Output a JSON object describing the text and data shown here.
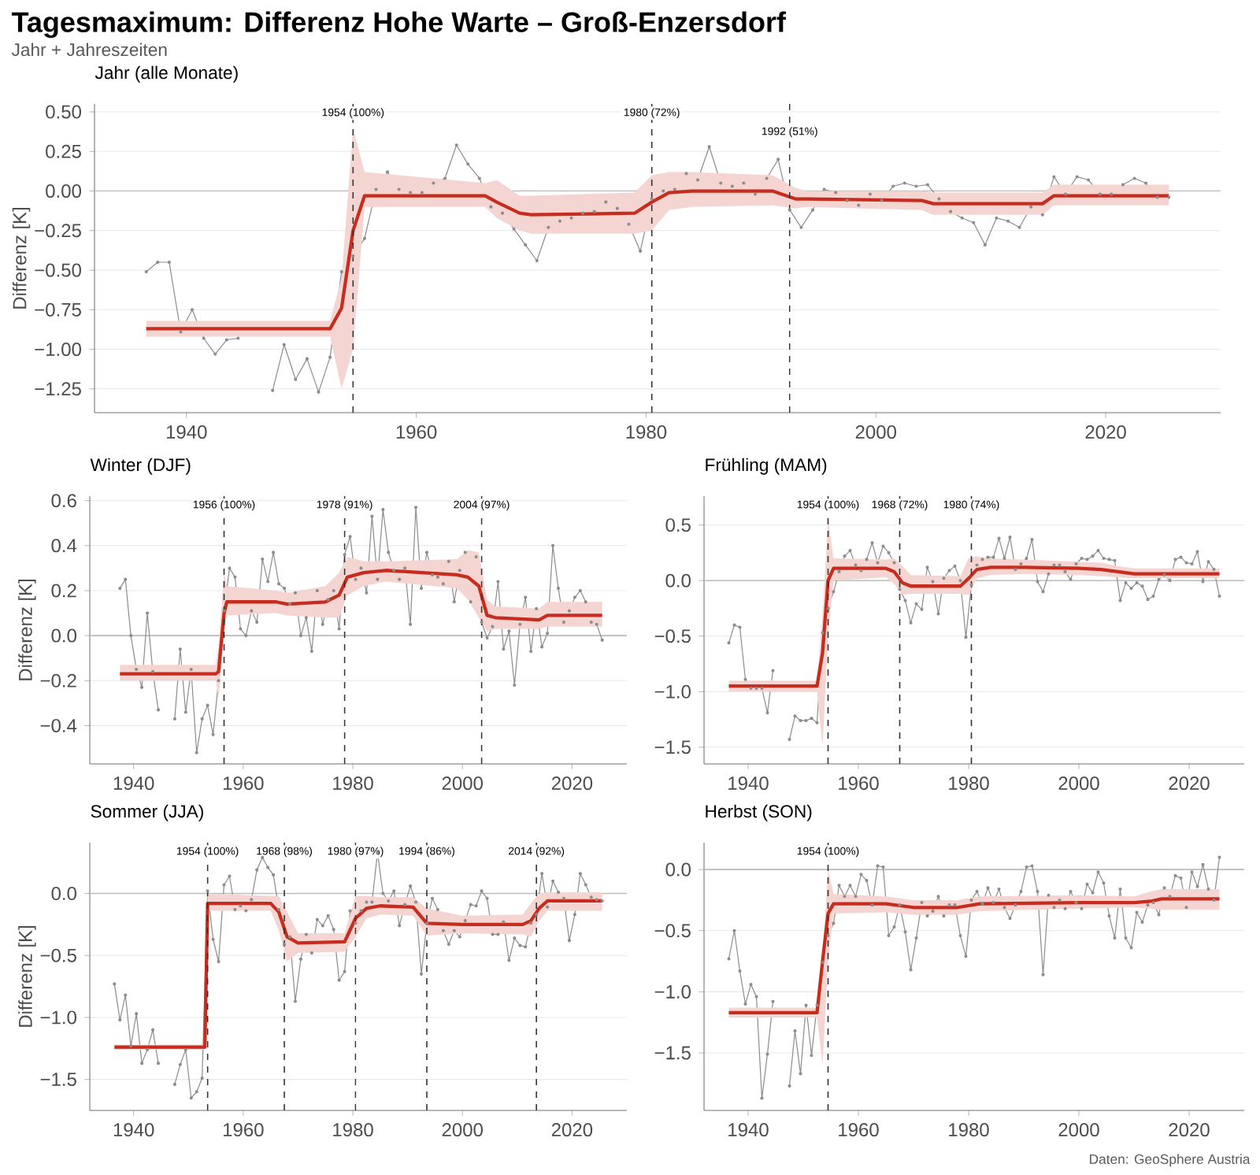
{
  "chart_data": [
    {
      "type": "other",
      "title": "Tagesmaximum: Differenz Hohe Warte – Groß-Enzersdorf",
      "subtitle": "Jahr + Jahreszeiten",
      "annotations": [
        "Daten: GeoSphere Austria"
      ]
    },
    {
      "type": "line",
      "title": "Jahr (alle Monate)",
      "ylabel": "Differenz [K]",
      "xlim": [
        1932,
        2030
      ],
      "ylim": [
        -1.4,
        0.55
      ],
      "xticks": [
        1940,
        1960,
        1980,
        2000,
        2020
      ],
      "yticks": [
        {
          "value": -1.25,
          "label": "−1.25"
        },
        {
          "value": -1.0,
          "label": "−1.00"
        },
        {
          "value": -0.75,
          "label": "−0.75"
        },
        {
          "value": -0.5,
          "label": "−0.50"
        },
        {
          "value": -0.25,
          "label": "−0.25"
        },
        {
          "value": 0,
          "label": "0.00"
        },
        {
          "value": 0.25,
          "label": "0.25"
        },
        {
          "value": 0.5,
          "label": "0.50"
        }
      ],
      "grid": "y",
      "ref_lines": [
        {
          "axis": "y",
          "value": 0,
          "color": "#bdbdbd",
          "line_style": "solid"
        },
        {
          "axis": "x",
          "value": 1954.5,
          "label": "1954 (100%)",
          "color": "#333333",
          "line_style": "dashed"
        },
        {
          "axis": "x",
          "value": 1980.5,
          "label": "1980 (72%)",
          "color": "#333333",
          "line_style": "dashed"
        },
        {
          "axis": "x",
          "value": 1992.5,
          "label": "1992 (51%)",
          "color": "#333333",
          "line_style": "dashed"
        }
      ],
      "series": [
        {
          "color": "#8c8c8c",
          "marker": "circle",
          "x": [
            1936.5,
            1937.5,
            1938.5,
            1939.5,
            1940.5,
            1941.5,
            1942.5,
            1943.5,
            1944.5,
            1945.5,
            1946.5,
            1947.5,
            1948.5,
            1949.5,
            1950.5,
            1951.5,
            1952.5,
            1953.5,
            1954.5,
            1955.5,
            1956.5,
            1957.5,
            1958.5,
            1959.5,
            1960.5,
            1961.5,
            1962.5,
            1963.5,
            1964.5,
            1965.5,
            1966.5,
            1967.5,
            1968.5,
            1969.5,
            1970.5,
            1971.5,
            1972.5,
            1973.5,
            1974.5,
            1975.5,
            1976.5,
            1977.5,
            1978.5,
            1979.5,
            1980.5,
            1981.5,
            1982.5,
            1983.5,
            1984.5,
            1985.5,
            1986.5,
            1987.5,
            1988.5,
            1989.5,
            1990.5,
            1991.5,
            1992.5,
            1993.5,
            1994.5,
            1995.5,
            1996.5,
            1997.5,
            1998.5,
            1999.5,
            2000.5,
            2001.5,
            2002.5,
            2003.5,
            2004.5,
            2005.5,
            2006.5,
            2007.5,
            2008.5,
            2009.5,
            2010.5,
            2011.5,
            2012.5,
            2013.5,
            2014.5,
            2015.5,
            2016.5,
            2017.5,
            2018.5,
            2019.5,
            2020.5,
            2021.5,
            2022.5,
            2023.5,
            2024.5,
            2025.5
          ],
          "values": [
            -0.51,
            -0.45,
            -0.45,
            -0.89,
            -0.75,
            -0.93,
            -1.03,
            -0.94,
            -0.93,
            null,
            null,
            -1.26,
            -0.97,
            -1.19,
            -1.06,
            -1.27,
            -1.05,
            -0.51,
            -0.41,
            -0.3,
            0.01,
            0.12,
            0.01,
            -0.01,
            -0.01,
            0.05,
            0.08,
            0.29,
            0.17,
            0.08,
            -0.1,
            -0.14,
            -0.24,
            -0.34,
            -0.44,
            -0.23,
            -0.19,
            -0.17,
            -0.14,
            -0.13,
            -0.07,
            -0.11,
            -0.21,
            -0.38,
            -0.05,
            0.0,
            0.01,
            0.11,
            0.07,
            0.28,
            0.05,
            0.03,
            0.05,
            -0.02,
            0.08,
            0.2,
            -0.12,
            -0.23,
            -0.12,
            0.01,
            -0.01,
            -0.06,
            -0.09,
            -0.02,
            -0.06,
            0.03,
            0.05,
            0.03,
            0.04,
            -0.05,
            -0.13,
            -0.17,
            -0.2,
            -0.34,
            -0.17,
            -0.19,
            -0.23,
            -0.1,
            -0.15,
            0.09,
            -0.02,
            0.09,
            0.07,
            -0.02,
            -0.02,
            0.04,
            0.08,
            0.05,
            -0.04,
            -0.04
          ]
        },
        {
          "color": "#c62d1f",
          "x": [
            1936.5,
            1952.5,
            1953.5,
            1954.5,
            1955.5,
            1966,
            1967,
            1969,
            1970,
            1979,
            1980.5,
            1982,
            1984,
            1991,
            1993,
            1994,
            2004,
            2005,
            2014.5,
            2015.5,
            2025.5
          ],
          "values": [
            -0.87,
            -0.87,
            -0.74,
            -0.25,
            -0.03,
            -0.03,
            -0.07,
            -0.14,
            -0.15,
            -0.14,
            -0.07,
            -0.01,
            0.0,
            0.0,
            -0.05,
            -0.05,
            -0.06,
            -0.08,
            -0.08,
            -0.03,
            -0.03
          ],
          "lower": [
            -0.92,
            -0.92,
            -1.25,
            -1.0,
            -0.1,
            -0.1,
            -0.17,
            -0.25,
            -0.27,
            -0.27,
            -0.25,
            -0.12,
            -0.1,
            -0.09,
            -0.11,
            -0.1,
            -0.12,
            -0.15,
            -0.15,
            -0.09,
            -0.09
          ],
          "upper": [
            -0.82,
            -0.82,
            -0.55,
            0.4,
            0.12,
            0.05,
            0.07,
            -0.03,
            -0.03,
            -0.01,
            0.1,
            0.12,
            0.12,
            0.1,
            0.02,
            0.0,
            0.0,
            -0.01,
            -0.01,
            0.04,
            0.04
          ]
        }
      ]
    },
    {
      "type": "line",
      "title": "Winter (DJF)",
      "ylabel": "Differenz [K]",
      "xlim": [
        1932,
        2030
      ],
      "ylim": [
        -0.57,
        0.62
      ],
      "xticks": [
        1940,
        1960,
        1980,
        2000,
        2020
      ],
      "yticks": [
        {
          "value": -0.4,
          "label": "−0.4"
        },
        {
          "value": -0.2,
          "label": "−0.2"
        },
        {
          "value": 0,
          "label": "0.0"
        },
        {
          "value": 0.2,
          "label": "0.2"
        },
        {
          "value": 0.4,
          "label": "0.4"
        },
        {
          "value": 0.6,
          "label": "0.6"
        }
      ],
      "grid": "y",
      "ref_lines": [
        {
          "axis": "y",
          "value": 0,
          "color": "#bdbdbd",
          "line_style": "solid"
        },
        {
          "axis": "x",
          "value": 1956.5,
          "label": "1956 (100%)",
          "color": "#333333",
          "line_style": "dashed"
        },
        {
          "axis": "x",
          "value": 1978.5,
          "label": "1978 (91%)",
          "color": "#333333",
          "line_style": "dashed"
        },
        {
          "axis": "x",
          "value": 2003.5,
          "label": "2004 (97%)",
          "color": "#333333",
          "line_style": "dashed"
        }
      ],
      "series": [
        {
          "color": "#8c8c8c",
          "marker": "circle",
          "x": [
            1937.5,
            1938.5,
            1939.5,
            1940.5,
            1941.5,
            1942.5,
            1943.5,
            1944.5,
            1945.5,
            1946.5,
            1947.5,
            1948.5,
            1949.5,
            1950.5,
            1951.5,
            1952.5,
            1953.5,
            1954.5,
            1955.5,
            1956.5,
            1957.5,
            1958.5,
            1959.5,
            1960.5,
            1961.5,
            1962.5,
            1963.5,
            1964.5,
            1965.5,
            1966.5,
            1967.5,
            1968.5,
            1969.5,
            1970.5,
            1971.5,
            1972.5,
            1973.5,
            1974.5,
            1975.5,
            1976.5,
            1977.5,
            1978.5,
            1979.5,
            1980.5,
            1981.5,
            1982.5,
            1983.5,
            1984.5,
            1985.5,
            1986.5,
            1987.5,
            1988.5,
            1989.5,
            1990.5,
            1991.5,
            1992.5,
            1993.5,
            1994.5,
            1995.5,
            1996.5,
            1997.5,
            1998.5,
            1999.5,
            2000.5,
            2001.5,
            2002.5,
            2003.5,
            2004.5,
            2005.5,
            2006.5,
            2007.5,
            2008.5,
            2009.5,
            2010.5,
            2011.5,
            2012.5,
            2013.5,
            2014.5,
            2015.5,
            2016.5,
            2017.5,
            2018.5,
            2019.5,
            2020.5,
            2021.5,
            2022.5,
            2023.5,
            2024.5,
            2025.5
          ],
          "values": [
            0.21,
            0.25,
            0.0,
            -0.15,
            -0.23,
            0.1,
            -0.16,
            -0.33,
            null,
            null,
            -0.37,
            -0.06,
            -0.34,
            -0.15,
            -0.52,
            -0.37,
            -0.31,
            -0.44,
            -0.2,
            0.11,
            0.3,
            0.26,
            0.03,
            0.0,
            0.11,
            0.06,
            0.34,
            0.24,
            0.37,
            0.23,
            0.21,
            0.14,
            0.19,
            0.0,
            0.08,
            -0.07,
            0.2,
            0.05,
            0.16,
            0.2,
            0.03,
            0.36,
            0.44,
            0.25,
            0.3,
            0.19,
            0.53,
            0.25,
            0.56,
            0.37,
            0.29,
            0.25,
            0.3,
            0.05,
            0.57,
            0.21,
            0.37,
            0.27,
            0.26,
            0.23,
            0.33,
            0.15,
            0.29,
            0.37,
            0.15,
            0.35,
            0.06,
            -0.01,
            0.04,
            0.24,
            -0.06,
            0.02,
            -0.22,
            0.05,
            0.17,
            -0.07,
            0.12,
            -0.05,
            0.01,
            0.4,
            0.21,
            0.06,
            0.11,
            0.17,
            0.2,
            0.15,
            0.06,
            0.05,
            -0.02
          ]
        },
        {
          "color": "#c62d1f",
          "x": [
            1937.5,
            1955,
            1955.5,
            1956.5,
            1957,
            1966,
            1968,
            1975,
            1977.5,
            1979,
            1982,
            1986,
            1999,
            2001,
            2003,
            2004.5,
            2006,
            2014,
            2015.5,
            2025.5
          ],
          "values": [
            -0.17,
            -0.17,
            -0.16,
            0.1,
            0.15,
            0.15,
            0.14,
            0.15,
            0.18,
            0.26,
            0.28,
            0.29,
            0.27,
            0.26,
            0.22,
            0.09,
            0.08,
            0.07,
            0.09,
            0.09
          ],
          "lower": [
            -0.2,
            -0.2,
            -0.28,
            0.0,
            0.09,
            0.1,
            0.09,
            0.08,
            0.08,
            0.18,
            0.22,
            0.24,
            0.21,
            0.16,
            0.08,
            0.02,
            0.03,
            0.03,
            0.04,
            0.04
          ],
          "upper": [
            -0.13,
            -0.13,
            -0.05,
            0.28,
            0.22,
            0.2,
            0.19,
            0.22,
            0.28,
            0.35,
            0.33,
            0.33,
            0.34,
            0.38,
            0.37,
            0.16,
            0.13,
            0.12,
            0.15,
            0.15
          ]
        }
      ]
    },
    {
      "type": "line",
      "title": "Frühling (MAM)",
      "xlim": [
        1932,
        2030
      ],
      "ylim": [
        -1.65,
        0.76
      ],
      "xticks": [
        1940,
        1960,
        1980,
        2000,
        2020
      ],
      "yticks": [
        {
          "value": -1.5,
          "label": "−1.5"
        },
        {
          "value": -1.0,
          "label": "−1.0"
        },
        {
          "value": -0.5,
          "label": "−0.5"
        },
        {
          "value": 0,
          "label": "0.0"
        },
        {
          "value": 0.5,
          "label": "0.5"
        }
      ],
      "grid": "y",
      "ref_lines": [
        {
          "axis": "y",
          "value": 0,
          "color": "#bdbdbd",
          "line_style": "solid"
        },
        {
          "axis": "x",
          "value": 1954.5,
          "label": "1954 (100%)",
          "color": "#333333",
          "line_style": "dashed"
        },
        {
          "axis": "x",
          "value": 1967.5,
          "label": "1968 (72%)",
          "color": "#333333",
          "line_style": "dashed"
        },
        {
          "axis": "x",
          "value": 1980.5,
          "label": "1980 (74%)",
          "color": "#333333",
          "line_style": "dashed"
        }
      ],
      "series": [
        {
          "color": "#8c8c8c",
          "marker": "circle",
          "x": [
            1936.5,
            1937.5,
            1938.5,
            1939.5,
            1940.5,
            1941.5,
            1942.5,
            1943.5,
            1944.5,
            1945.5,
            1946.5,
            1947.5,
            1948.5,
            1949.5,
            1950.5,
            1951.5,
            1952.5,
            1953.5,
            1954.5,
            1955.5,
            1956.5,
            1957.5,
            1958.5,
            1959.5,
            1960.5,
            1961.5,
            1962.5,
            1963.5,
            1964.5,
            1965.5,
            1966.5,
            1967.5,
            1968.5,
            1969.5,
            1970.5,
            1971.5,
            1972.5,
            1973.5,
            1974.5,
            1975.5,
            1976.5,
            1977.5,
            1978.5,
            1979.5,
            1980.5,
            1981.5,
            1982.5,
            1983.5,
            1984.5,
            1985.5,
            1986.5,
            1987.5,
            1988.5,
            1989.5,
            1990.5,
            1991.5,
            1992.5,
            1993.5,
            1994.5,
            1995.5,
            1996.5,
            1997.5,
            1998.5,
            1999.5,
            2000.5,
            2001.5,
            2002.5,
            2003.5,
            2004.5,
            2005.5,
            2006.5,
            2007.5,
            2008.5,
            2009.5,
            2010.5,
            2011.5,
            2012.5,
            2013.5,
            2014.5,
            2015.5,
            2016.5,
            2017.5,
            2018.5,
            2019.5,
            2020.5,
            2021.5,
            2022.5,
            2023.5,
            2024.5,
            2025.5
          ],
          "values": [
            -0.56,
            -0.4,
            -0.42,
            -0.89,
            -0.97,
            -0.97,
            -0.97,
            -1.19,
            -0.81,
            null,
            null,
            -1.43,
            -1.22,
            -1.26,
            -1.26,
            -1.24,
            -1.28,
            -0.47,
            -0.25,
            -0.1,
            0.08,
            0.22,
            0.27,
            0.14,
            0.09,
            0.19,
            0.34,
            0.16,
            0.31,
            0.25,
            0.16,
            -0.08,
            -0.18,
            -0.38,
            -0.21,
            -0.26,
            0.12,
            -0.01,
            -0.3,
            0.02,
            0.09,
            0.13,
            0.0,
            -0.51,
            -0.04,
            0.14,
            0.19,
            0.21,
            0.21,
            0.38,
            0.2,
            0.39,
            0.1,
            0.15,
            0.2,
            0.37,
            -0.01,
            -0.1,
            0.06,
            0.14,
            0.14,
            0.08,
            0.01,
            0.15,
            0.2,
            0.19,
            0.22,
            0.27,
            0.2,
            0.19,
            0.18,
            -0.18,
            -0.02,
            -0.07,
            -0.02,
            -0.05,
            -0.17,
            -0.14,
            0.01,
            0.05,
            0.0,
            0.19,
            0.21,
            0.16,
            0.15,
            0.26,
            -0.01,
            0.17,
            0.1,
            -0.14
          ]
        },
        {
          "color": "#c62d1f",
          "x": [
            1936.5,
            1952.5,
            1953.5,
            1954.5,
            1955.5,
            1965,
            1966.5,
            1968,
            1969.5,
            1978.5,
            1980,
            1981.5,
            1984,
            1990,
            2000,
            2004,
            2007,
            2010,
            2025.5
          ],
          "values": [
            -0.95,
            -0.95,
            -0.65,
            0.0,
            0.11,
            0.11,
            0.08,
            -0.02,
            -0.05,
            -0.05,
            0.02,
            0.1,
            0.12,
            0.12,
            0.11,
            0.1,
            0.08,
            0.06,
            0.06
          ],
          "lower": [
            -1.0,
            -1.0,
            -1.5,
            -0.5,
            0.0,
            0.03,
            -0.03,
            -0.13,
            -0.12,
            -0.12,
            -0.13,
            0.02,
            0.05,
            0.06,
            0.05,
            0.04,
            0.03,
            0.02,
            0.02
          ],
          "upper": [
            -0.9,
            -0.9,
            -0.3,
            0.55,
            0.2,
            0.19,
            0.2,
            0.13,
            0.05,
            0.04,
            0.2,
            0.22,
            0.2,
            0.19,
            0.17,
            0.16,
            0.13,
            0.11,
            0.11
          ]
        }
      ]
    },
    {
      "type": "line",
      "title": "Sommer (JJA)",
      "ylabel": "Differenz [K]",
      "xlim": [
        1932,
        2030
      ],
      "ylim": [
        -1.75,
        0.41
      ],
      "xticks": [
        1940,
        1960,
        1980,
        2000,
        2020
      ],
      "yticks": [
        {
          "value": -1.5,
          "label": "−1.5"
        },
        {
          "value": -1.0,
          "label": "−1.0"
        },
        {
          "value": -0.5,
          "label": "−0.5"
        },
        {
          "value": 0,
          "label": "0.0"
        }
      ],
      "grid": "y",
      "ref_lines": [
        {
          "axis": "y",
          "value": 0,
          "color": "#bdbdbd",
          "line_style": "solid"
        },
        {
          "axis": "x",
          "value": 1953.5,
          "label": "1954 (100%)",
          "color": "#333333",
          "line_style": "dashed"
        },
        {
          "axis": "x",
          "value": 1967.5,
          "label": "1968 (98%)",
          "color": "#333333",
          "line_style": "dashed"
        },
        {
          "axis": "x",
          "value": 1980.5,
          "label": "1980 (97%)",
          "color": "#333333",
          "line_style": "dashed"
        },
        {
          "axis": "x",
          "value": 1993.5,
          "label": "1994 (86%)",
          "color": "#333333",
          "line_style": "dashed"
        },
        {
          "axis": "x",
          "value": 2013.5,
          "label": "2014 (92%)",
          "color": "#333333",
          "line_style": "dashed"
        }
      ],
      "series": [
        {
          "color": "#8c8c8c",
          "marker": "circle",
          "x": [
            1936.5,
            1937.5,
            1938.5,
            1939.5,
            1940.5,
            1941.5,
            1942.5,
            1943.5,
            1944.5,
            1945.5,
            1946.5,
            1947.5,
            1948.5,
            1949.5,
            1950.5,
            1951.5,
            1952.5,
            1953.5,
            1954.5,
            1955.5,
            1956.5,
            1957.5,
            1958.5,
            1959.5,
            1960.5,
            1961.5,
            1962.5,
            1963.5,
            1964.5,
            1965.5,
            1966.5,
            1967.5,
            1968.5,
            1969.5,
            1970.5,
            1971.5,
            1972.5,
            1973.5,
            1974.5,
            1975.5,
            1976.5,
            1977.5,
            1978.5,
            1979.5,
            1980.5,
            1981.5,
            1982.5,
            1983.5,
            1984.5,
            1985.5,
            1986.5,
            1987.5,
            1988.5,
            1989.5,
            1990.5,
            1991.5,
            1992.5,
            1993.5,
            1994.5,
            1995.5,
            1996.5,
            1997.5,
            1998.5,
            1999.5,
            2000.5,
            2001.5,
            2002.5,
            2003.5,
            2004.5,
            2005.5,
            2006.5,
            2007.5,
            2008.5,
            2009.5,
            2010.5,
            2011.5,
            2012.5,
            2013.5,
            2014.5,
            2015.5,
            2016.5,
            2017.5,
            2018.5,
            2019.5,
            2020.5,
            2021.5,
            2022.5,
            2023.5,
            2024.5,
            2025.5
          ],
          "values": [
            -0.73,
            -1.02,
            -0.82,
            -1.23,
            -0.97,
            -1.37,
            -1.26,
            -1.1,
            -1.37,
            null,
            null,
            -1.54,
            -1.38,
            -1.26,
            -1.65,
            -1.6,
            -1.49,
            0.02,
            -0.37,
            -0.55,
            0.07,
            0.14,
            -0.13,
            -0.1,
            -0.14,
            -0.05,
            0.19,
            0.29,
            0.21,
            0.15,
            -0.13,
            -0.41,
            -0.35,
            -0.87,
            -0.53,
            -0.33,
            -0.48,
            -0.21,
            -0.26,
            -0.18,
            -0.29,
            -0.7,
            -0.63,
            -0.14,
            -0.24,
            -0.14,
            -0.07,
            -0.07,
            0.33,
            0.0,
            -0.06,
            0.02,
            -0.26,
            -0.09,
            0.06,
            -0.07,
            -0.65,
            -0.24,
            -0.04,
            -0.13,
            -0.3,
            -0.41,
            -0.3,
            -0.35,
            -0.22,
            -0.09,
            -0.1,
            0.02,
            -0.04,
            -0.33,
            -0.33,
            -0.23,
            -0.54,
            -0.36,
            -0.42,
            -0.43,
            -0.24,
            -0.17,
            0.16,
            -0.11,
            0.1,
            0.01,
            -0.04,
            -0.38,
            -0.17,
            0.16,
            0.07,
            -0.03,
            -0.05,
            -0.06
          ]
        },
        {
          "color": "#c62d1f",
          "x": [
            1936.5,
            1953,
            1953.5,
            1965,
            1966.5,
            1968,
            1970,
            1978.5,
            1980.5,
            1982.5,
            1985,
            1991,
            1993.5,
            2000,
            2011,
            2012.5,
            2014,
            2015.5,
            2025.5
          ],
          "values": [
            -1.24,
            -1.24,
            -0.08,
            -0.08,
            -0.15,
            -0.35,
            -0.4,
            -0.39,
            -0.2,
            -0.12,
            -0.1,
            -0.11,
            -0.24,
            -0.25,
            -0.25,
            -0.22,
            -0.12,
            -0.06,
            -0.06
          ],
          "lower": [
            -1.26,
            -1.26,
            -0.14,
            -0.14,
            -0.3,
            -0.55,
            -0.48,
            -0.47,
            -0.35,
            -0.2,
            -0.17,
            -0.18,
            -0.34,
            -0.32,
            -0.33,
            -0.35,
            -0.22,
            -0.14,
            -0.14
          ],
          "upper": [
            -1.22,
            -1.22,
            0.0,
            -0.02,
            -0.02,
            -0.15,
            -0.32,
            -0.32,
            -0.02,
            -0.02,
            -0.03,
            -0.03,
            -0.12,
            -0.18,
            -0.17,
            -0.08,
            0.0,
            0.01,
            0.01
          ]
        }
      ]
    },
    {
      "type": "line",
      "title": "Herbst (SON)",
      "xlim": [
        1932,
        2030
      ],
      "ylim": [
        -1.97,
        0.22
      ],
      "xticks": [
        1940,
        1960,
        1980,
        2000,
        2020
      ],
      "yticks": [
        {
          "value": -1.5,
          "label": "−1.5"
        },
        {
          "value": -1.0,
          "label": "−1.0"
        },
        {
          "value": -0.5,
          "label": "−0.5"
        },
        {
          "value": 0,
          "label": "0.0"
        }
      ],
      "grid": "y",
      "ref_lines": [
        {
          "axis": "y",
          "value": 0,
          "color": "#bdbdbd",
          "line_style": "solid"
        },
        {
          "axis": "x",
          "value": 1954.5,
          "label": "1954 (100%)",
          "color": "#333333",
          "line_style": "dashed"
        }
      ],
      "series": [
        {
          "color": "#8c8c8c",
          "marker": "circle",
          "x": [
            1936.5,
            1937.5,
            1938.5,
            1939.5,
            1940.5,
            1941.5,
            1942.5,
            1943.5,
            1944.5,
            1945.5,
            1946.5,
            1947.5,
            1948.5,
            1949.5,
            1950.5,
            1951.5,
            1952.5,
            1953.5,
            1954.5,
            1955.5,
            1956.5,
            1957.5,
            1958.5,
            1959.5,
            1960.5,
            1961.5,
            1962.5,
            1963.5,
            1964.5,
            1965.5,
            1966.5,
            1967.5,
            1968.5,
            1969.5,
            1970.5,
            1971.5,
            1972.5,
            1973.5,
            1974.5,
            1975.5,
            1976.5,
            1977.5,
            1978.5,
            1979.5,
            1980.5,
            1981.5,
            1982.5,
            1983.5,
            1984.5,
            1985.5,
            1986.5,
            1987.5,
            1988.5,
            1989.5,
            1990.5,
            1991.5,
            1992.5,
            1993.5,
            1994.5,
            1995.5,
            1996.5,
            1997.5,
            1998.5,
            1999.5,
            2000.5,
            2001.5,
            2002.5,
            2003.5,
            2004.5,
            2005.5,
            2006.5,
            2007.5,
            2008.5,
            2009.5,
            2010.5,
            2011.5,
            2012.5,
            2013.5,
            2014.5,
            2015.5,
            2016.5,
            2017.5,
            2018.5,
            2019.5,
            2020.5,
            2021.5,
            2022.5,
            2023.5,
            2024.5,
            2025.5
          ],
          "values": [
            -0.73,
            -0.5,
            -0.83,
            -1.1,
            -0.94,
            -1.04,
            -1.87,
            -1.51,
            -1.08,
            null,
            null,
            -1.77,
            -1.32,
            -1.67,
            -1.11,
            -1.52,
            -1.11,
            -0.76,
            -0.54,
            -0.44,
            -0.13,
            -0.22,
            -0.13,
            -0.22,
            -0.04,
            -0.09,
            -0.29,
            0.03,
            0.02,
            -0.54,
            -0.47,
            -0.29,
            -0.51,
            -0.82,
            -0.56,
            -0.27,
            -0.38,
            -0.34,
            -0.22,
            -0.38,
            -0.29,
            -0.29,
            -0.54,
            -0.71,
            -0.25,
            -0.18,
            -0.28,
            -0.15,
            -0.27,
            -0.16,
            -0.31,
            -0.4,
            -0.29,
            -0.18,
            0.02,
            0.03,
            -0.18,
            -0.86,
            -0.21,
            -0.31,
            -0.25,
            -0.32,
            -0.18,
            -0.27,
            -0.32,
            -0.12,
            -0.19,
            -0.02,
            -0.11,
            -0.38,
            -0.56,
            -0.16,
            -0.56,
            -0.64,
            -0.35,
            -0.43,
            -0.29,
            -0.27,
            -0.37,
            -0.15,
            -0.22,
            -0.05,
            -0.07,
            -0.31,
            -0.02,
            -0.14,
            0.04,
            -0.16,
            -0.25,
            0.1
          ]
        },
        {
          "color": "#c62d1f",
          "x": [
            1936.5,
            1952.5,
            1953.5,
            1954.5,
            1955.5,
            1965,
            1970,
            1978,
            1982,
            2000,
            2010,
            2013,
            2015,
            2025.5
          ],
          "values": [
            -1.17,
            -1.17,
            -0.75,
            -0.36,
            -0.28,
            -0.28,
            -0.31,
            -0.31,
            -0.28,
            -0.27,
            -0.27,
            -0.26,
            -0.24,
            -0.24
          ],
          "lower": [
            -1.21,
            -1.21,
            -1.6,
            -0.75,
            -0.36,
            -0.35,
            -0.37,
            -0.37,
            -0.34,
            -0.32,
            -0.31,
            -0.32,
            -0.33,
            -0.33
          ],
          "upper": [
            -1.13,
            -1.13,
            -0.7,
            0.0,
            -0.2,
            -0.22,
            -0.25,
            -0.25,
            -0.22,
            -0.21,
            -0.22,
            -0.18,
            -0.16,
            -0.16
          ]
        }
      ]
    }
  ]
}
